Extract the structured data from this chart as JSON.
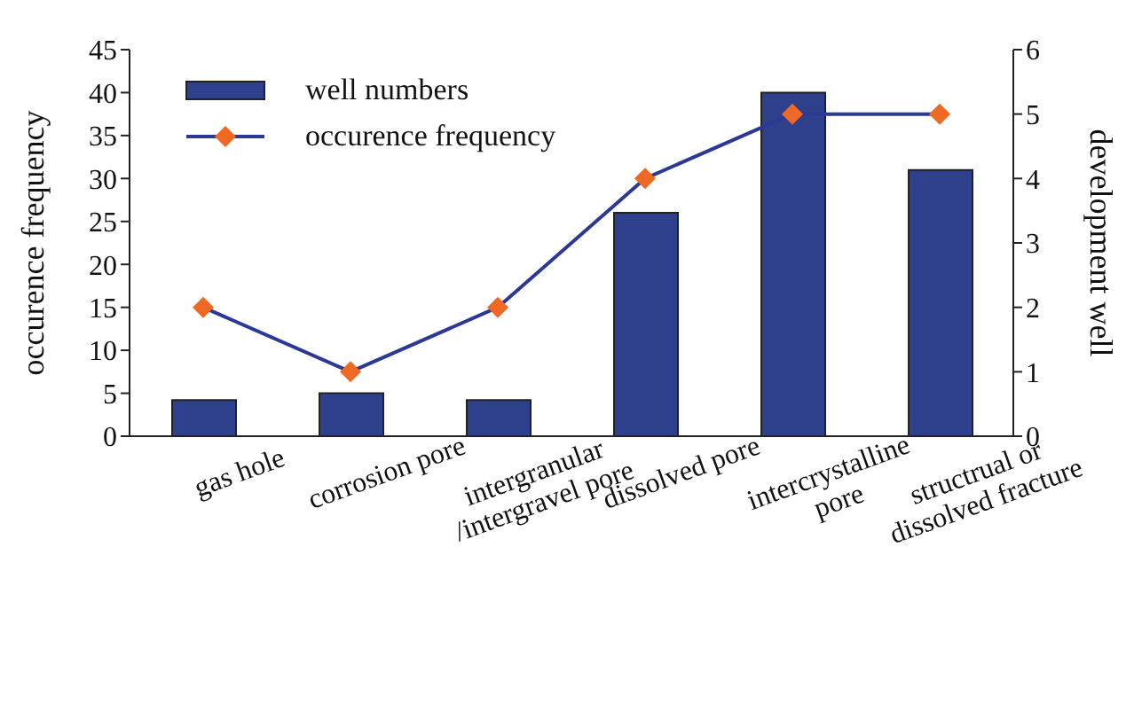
{
  "chart_data": {
    "type": "bar",
    "categories": [
      "gas hole",
      "corrosion pore",
      "intergranular\n/intergravel pore",
      "dissolved pore",
      "intercrystalline\npore",
      "structrual or\ndissolved fracture"
    ],
    "xlabel": null,
    "ylabel": "occurence frequency",
    "y2label": "development well",
    "series": [
      {
        "name": "well numbers",
        "color": "#2e3f8c",
        "values": [
          4.2,
          5,
          4.2,
          26,
          40,
          31
        ]
      },
      {
        "name": "occurence frequency",
        "type": "line",
        "axis": "y2",
        "color": "#2b3994",
        "colors": [
          "#ee6a24",
          "#ee6a24",
          "#ee6a24",
          "#ee6a24",
          "#ee6a24",
          "#ee6a24"
        ],
        "marker": "diamond",
        "values": [
          2,
          1,
          2,
          4,
          5,
          5
        ]
      }
    ],
    "ylim": [
      0,
      45
    ],
    "yticks": [
      0,
      5,
      10,
      15,
      20,
      25,
      30,
      35,
      40,
      45
    ],
    "y2lim": [
      0,
      6
    ],
    "y2ticks": [
      0,
      1,
      2,
      3,
      4,
      5,
      6
    ],
    "grid": false,
    "legend": "top left"
  }
}
